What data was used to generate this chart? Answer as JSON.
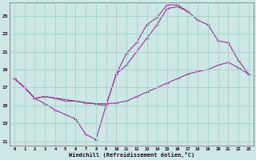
{
  "xlabel": "Windchill (Refroidissement éolien,°C)",
  "bg_color": "#cde8e4",
  "grid_color": "#aad4cc",
  "line_color": "#993399",
  "xlim": [
    -0.5,
    23.5
  ],
  "ylim": [
    10.5,
    26.5
  ],
  "xticks": [
    0,
    1,
    2,
    3,
    4,
    5,
    6,
    7,
    8,
    9,
    10,
    11,
    12,
    13,
    14,
    15,
    16,
    17,
    18,
    19,
    20,
    21,
    22,
    23
  ],
  "yticks": [
    11,
    13,
    15,
    17,
    19,
    21,
    23,
    25
  ],
  "series": [
    {
      "x": [
        0,
        1,
        2,
        3,
        4,
        5,
        6,
        7,
        8,
        9,
        10,
        11,
        12,
        13,
        14,
        15,
        16,
        17
      ],
      "y": [
        18.0,
        17.0,
        15.8,
        15.2,
        14.5,
        14.0,
        13.5,
        11.8,
        11.2,
        15.0,
        18.5,
        20.8,
        22.0,
        24.0,
        24.8,
        26.2,
        26.2,
        25.5
      ]
    },
    {
      "x": [
        0,
        1,
        2,
        3,
        4,
        5,
        6,
        7,
        8,
        9,
        10,
        11,
        12,
        13,
        14,
        15,
        16,
        17,
        18,
        19,
        20,
        21,
        22,
        23
      ],
      "y": [
        18.0,
        17.0,
        15.8,
        16.0,
        15.8,
        15.5,
        15.5,
        15.3,
        15.2,
        15.2,
        15.3,
        15.5,
        16.0,
        16.5,
        17.0,
        17.5,
        18.0,
        18.5,
        18.8,
        19.0,
        19.5,
        19.8,
        19.2,
        18.5
      ]
    },
    {
      "x": [
        0,
        1,
        2,
        3,
        9,
        10,
        11,
        12,
        13,
        14,
        15,
        16,
        17,
        18,
        19,
        20,
        21,
        22,
        23
      ],
      "y": [
        18.0,
        17.0,
        15.8,
        16.0,
        15.0,
        18.5,
        19.5,
        21.0,
        22.5,
        24.0,
        25.8,
        26.0,
        25.5,
        24.5,
        24.0,
        22.2,
        22.0,
        20.0,
        18.5
      ]
    }
  ]
}
